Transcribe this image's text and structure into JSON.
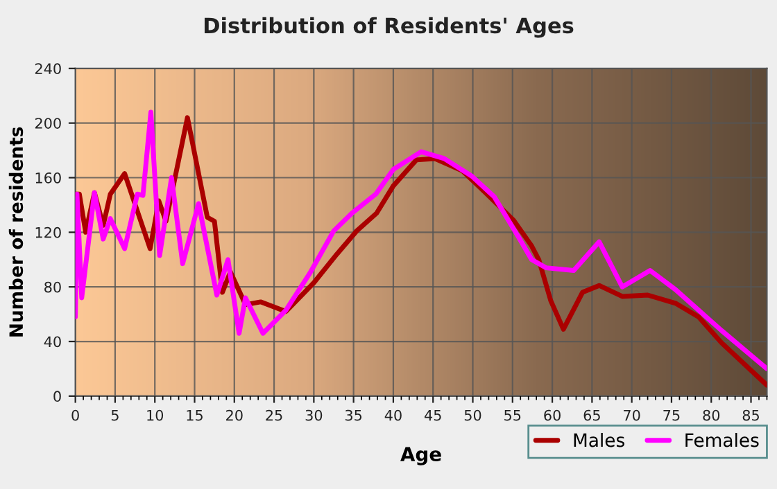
{
  "chart_data": {
    "type": "line",
    "title": "Distribution of Residents' Ages",
    "xlabel": "Age",
    "ylabel": "Number of residents",
    "xlim": [
      0,
      87
    ],
    "xticks": [
      0,
      5,
      10,
      15,
      20,
      25,
      30,
      35,
      40,
      45,
      50,
      55,
      60,
      65,
      70,
      75,
      80,
      85
    ],
    "ylim": [
      0,
      240
    ],
    "yticks": [
      0,
      40,
      80,
      120,
      160,
      200,
      240
    ],
    "grid": true,
    "legend": "bottom right",
    "marker": "none",
    "line_style": "solid",
    "series": [
      {
        "name": "Males",
        "color": "#aa0000",
        "x": [
          0,
          0.5,
          1.3,
          2.4,
          3.5,
          4.4,
          6.2,
          9.4,
          10.5,
          11.4,
          14.1,
          16.6,
          17.5,
          18.5,
          19.5,
          21.4,
          23.3,
          26.5,
          30,
          32.9,
          35.4,
          37.9,
          40,
          42.9,
          45.2,
          48.7,
          51.6,
          55.1,
          57.4,
          58.3,
          59.8,
          61.4,
          63.8,
          65.9,
          68.8,
          72,
          75.5,
          78.4,
          81.3,
          87
        ],
        "values": [
          148,
          148,
          120,
          149,
          125,
          148,
          163,
          108,
          143,
          128,
          204,
          131,
          128,
          76,
          91,
          67,
          69,
          62,
          83,
          104,
          121,
          134,
          154,
          173,
          174,
          165,
          149,
          129,
          110,
          100,
          70,
          49,
          76,
          81,
          73,
          74,
          68,
          58,
          39,
          8
        ]
      },
      {
        "name": "Females",
        "color": "#ff00ff",
        "x": [
          0,
          0.2,
          0.8,
          2.4,
          3.5,
          4.4,
          6.2,
          7.8,
          8.5,
          9.5,
          10.6,
          12.1,
          13.5,
          15.5,
          17.8,
          19.2,
          20.6,
          21.4,
          23.6,
          26.5,
          29.5,
          32.5,
          34.8,
          37.8,
          40,
          43.5,
          46.4,
          49.9,
          52.7,
          55.7,
          57.4,
          59.2,
          62.7,
          65.9,
          68.8,
          72.3,
          75.5,
          81.3,
          87
        ],
        "values": [
          58,
          148,
          72,
          149,
          115,
          130,
          108,
          148,
          147,
          208,
          103,
          160,
          97,
          141,
          74,
          100,
          46,
          72,
          46,
          63,
          90,
          121,
          134,
          148,
          166,
          179,
          174,
          161,
          146,
          117,
          100,
          94,
          92,
          113,
          80,
          92,
          78,
          48,
          20
        ]
      }
    ]
  }
}
